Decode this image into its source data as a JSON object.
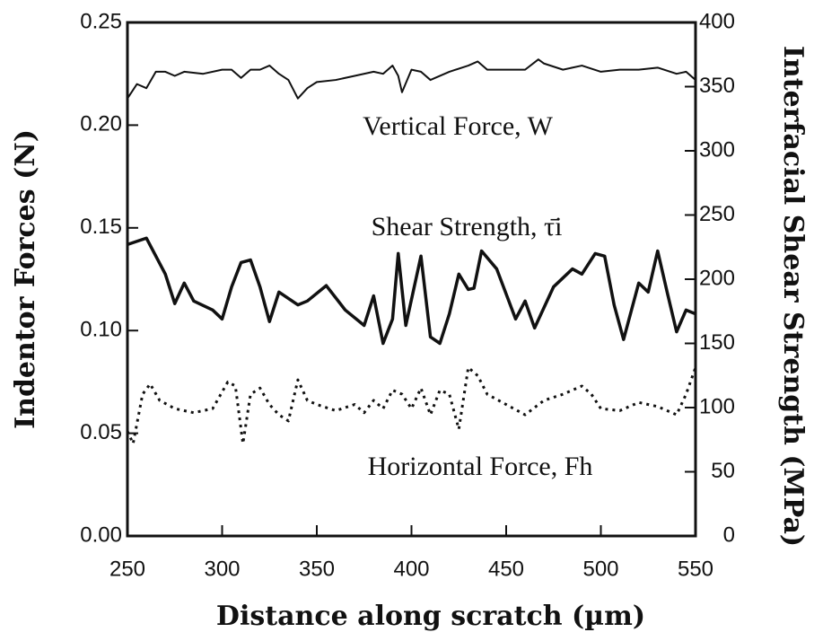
{
  "chart_data": {
    "type": "line",
    "x_label": "Distance along scratch (µm)",
    "y_label": "Indentor Forces (N)",
    "y2_label": "Interfacial Shear Strength (MPa)",
    "xlim": [
      250,
      550
    ],
    "xticks": [
      250,
      300,
      350,
      400,
      450,
      500,
      550
    ],
    "ylim": [
      0,
      0.25
    ],
    "yticks": [
      {
        "value": 0,
        "label": "0.00"
      },
      0.05,
      {
        "value": 0.1,
        "label": "0.10"
      },
      0.15,
      {
        "value": 0.2,
        "label": "0.20"
      },
      0.25
    ],
    "y2lim": [
      0,
      400
    ],
    "y2ticks": [
      0,
      50,
      100,
      150,
      200,
      250,
      300,
      350,
      400
    ],
    "grid": false,
    "series": [
      {
        "name": "Vertical Force, W",
        "color": "#111111",
        "x": [
          250,
          255,
          260,
          265,
          270,
          275,
          280,
          290,
          300,
          305,
          310,
          315,
          320,
          325,
          330,
          335,
          340,
          345,
          350,
          360,
          370,
          380,
          385,
          390,
          393,
          395,
          400,
          405,
          410,
          420,
          430,
          435,
          440,
          450,
          460,
          467,
          470,
          480,
          490,
          500,
          510,
          520,
          530,
          540,
          545,
          550
        ],
        "values": [
          0.213,
          0.22,
          0.218,
          0.226,
          0.226,
          0.224,
          0.226,
          0.225,
          0.227,
          0.227,
          0.223,
          0.227,
          0.227,
          0.229,
          0.225,
          0.222,
          0.213,
          0.218,
          0.221,
          0.222,
          0.224,
          0.226,
          0.225,
          0.229,
          0.224,
          0.216,
          0.227,
          0.226,
          0.222,
          0.226,
          0.229,
          0.231,
          0.227,
          0.227,
          0.227,
          0.232,
          0.23,
          0.227,
          0.229,
          0.226,
          0.227,
          0.227,
          0.228,
          0.225,
          0.226,
          0.222
        ]
      },
      {
        "name": "Shear Strength, τ̄i",
        "color": "#111111",
        "axis": "y2",
        "x": [
          250,
          260,
          270,
          275,
          280,
          285,
          295,
          300,
          305,
          310,
          315,
          320,
          325,
          330,
          340,
          345,
          355,
          365,
          375,
          380,
          385,
          390,
          393,
          397,
          405,
          410,
          415,
          420,
          425,
          430,
          433,
          437,
          445,
          455,
          460,
          465,
          475,
          485,
          490,
          497,
          502,
          507,
          512,
          520,
          525,
          530,
          535,
          540,
          545,
          550
        ],
        "values": [
          227,
          232,
          204,
          181,
          197,
          183,
          176,
          169,
          194,
          213,
          215,
          194,
          167,
          190,
          180,
          183,
          195,
          176,
          164,
          187,
          150,
          169,
          220,
          164,
          218,
          155,
          150,
          173,
          204,
          192,
          193,
          222,
          208,
          169,
          183,
          162,
          194,
          208,
          204,
          220,
          218,
          180,
          153,
          197,
          190,
          222,
          190,
          159,
          176,
          173
        ]
      },
      {
        "name": "Horizontal Force, Fh",
        "color": "#111111",
        "x": [
          250,
          253,
          258,
          262,
          267,
          275,
          285,
          295,
          303,
          307,
          311,
          315,
          320,
          325,
          330,
          335,
          340,
          345,
          350,
          360,
          370,
          375,
          380,
          385,
          390,
          395,
          400,
          405,
          410,
          415,
          420,
          425,
          430,
          435,
          440,
          450,
          460,
          470,
          480,
          490,
          495,
          500,
          510,
          520,
          530,
          540,
          545,
          550
        ],
        "values": [
          0.051,
          0.045,
          0.069,
          0.074,
          0.066,
          0.062,
          0.06,
          0.062,
          0.075,
          0.073,
          0.045,
          0.069,
          0.072,
          0.064,
          0.059,
          0.056,
          0.076,
          0.066,
          0.064,
          0.061,
          0.064,
          0.06,
          0.066,
          0.062,
          0.071,
          0.069,
          0.062,
          0.072,
          0.059,
          0.071,
          0.069,
          0.052,
          0.082,
          0.078,
          0.069,
          0.064,
          0.059,
          0.066,
          0.069,
          0.073,
          0.069,
          0.062,
          0.061,
          0.065,
          0.063,
          0.059,
          0.069,
          0.082
        ]
      }
    ]
  }
}
